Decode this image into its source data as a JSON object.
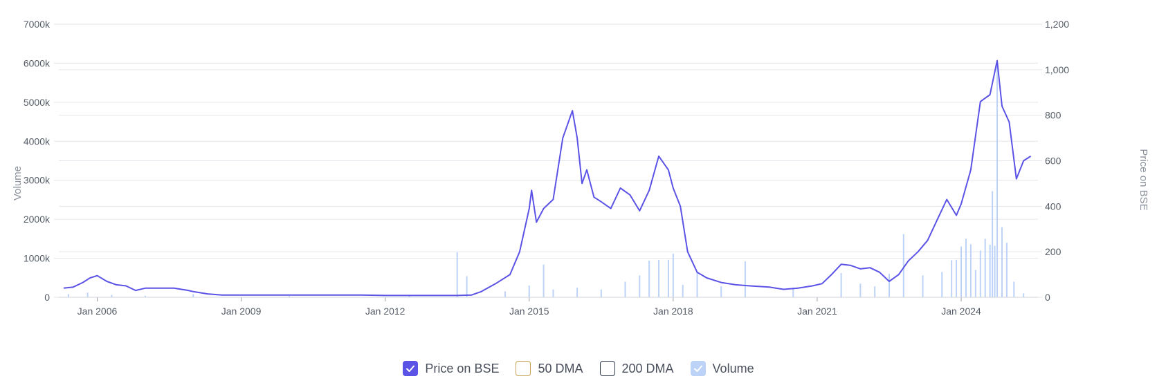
{
  "chart_data": {
    "type": "line",
    "xlabel": "",
    "y_left_label": "Volume",
    "y_right_label": "Price on BSE",
    "x_ticks": [
      "Jan 2006",
      "Jan 2009",
      "Jan 2012",
      "Jan 2015",
      "Jan 2018",
      "Jan 2021",
      "Jan 2024"
    ],
    "y_left_ticks": [
      "0",
      "1000k",
      "2000k",
      "3000k",
      "4000k",
      "5000k",
      "6000k",
      "7000k"
    ],
    "y_right_ticks": [
      "0",
      "200",
      "400",
      "600",
      "800",
      "1,000",
      "1,200"
    ],
    "x_range": [
      2005.2,
      2025.6
    ],
    "y_left_range": [
      0,
      7000000
    ],
    "y_right_range": [
      0,
      1200
    ],
    "grid": true,
    "legend_position": "bottom",
    "series": [
      {
        "name": "Price on BSE",
        "axis": "right",
        "color": "#5b52e6",
        "x": [
          2005.3,
          2005.5,
          2005.7,
          2005.85,
          2006.0,
          2006.2,
          2006.4,
          2006.6,
          2006.8,
          2007.0,
          2007.3,
          2007.6,
          2007.9,
          2008.0,
          2008.3,
          2008.6,
          2009.0,
          2009.5,
          2010.0,
          2010.5,
          2011.0,
          2011.5,
          2012.0,
          2012.5,
          2013.0,
          2013.5,
          2013.8,
          2014.0,
          2014.3,
          2014.6,
          2014.8,
          2015.0,
          2015.05,
          2015.15,
          2015.3,
          2015.5,
          2015.7,
          2015.9,
          2016.0,
          2016.1,
          2016.2,
          2016.35,
          2016.5,
          2016.7,
          2016.9,
          2017.1,
          2017.3,
          2017.5,
          2017.7,
          2017.9,
          2018.0,
          2018.15,
          2018.3,
          2018.5,
          2018.7,
          2019.0,
          2019.3,
          2019.6,
          2020.0,
          2020.3,
          2020.6,
          2020.9,
          2021.1,
          2021.3,
          2021.5,
          2021.7,
          2021.9,
          2022.1,
          2022.3,
          2022.5,
          2022.7,
          2022.9,
          2023.1,
          2023.3,
          2023.5,
          2023.7,
          2023.9,
          2024.0,
          2024.2,
          2024.4,
          2024.6,
          2024.75,
          2024.85,
          2025.0,
          2025.15,
          2025.3,
          2025.45
        ],
        "y": [
          40,
          45,
          65,
          85,
          95,
          70,
          55,
          50,
          30,
          40,
          40,
          40,
          30,
          25,
          15,
          10,
          10,
          10,
          10,
          10,
          10,
          10,
          8,
          8,
          8,
          8,
          10,
          25,
          60,
          100,
          200,
          390,
          470,
          330,
          390,
          430,
          700,
          820,
          700,
          500,
          560,
          440,
          420,
          390,
          480,
          450,
          380,
          470,
          620,
          560,
          480,
          400,
          200,
          110,
          85,
          65,
          55,
          50,
          45,
          35,
          40,
          50,
          60,
          100,
          145,
          140,
          125,
          130,
          110,
          70,
          100,
          160,
          200,
          250,
          340,
          430,
          360,
          410,
          560,
          860,
          890,
          1040,
          840,
          770,
          520,
          600,
          620
        ]
      },
      {
        "name": "50 DMA",
        "axis": "right",
        "color": "#c9a35a",
        "visible": false
      },
      {
        "name": "200 DMA",
        "axis": "right",
        "color": "#2e3a4a",
        "visible": false
      },
      {
        "name": "Volume",
        "axis": "left",
        "type": "bar",
        "color": "#bcd3f7",
        "x": [
          2005.4,
          2005.8,
          2006.3,
          2007.0,
          2008.0,
          2010.0,
          2012.5,
          2013.5,
          2013.7,
          2014.5,
          2015.0,
          2015.3,
          2015.5,
          2016.0,
          2016.5,
          2017.0,
          2017.3,
          2017.5,
          2017.7,
          2017.9,
          2018.0,
          2018.2,
          2018.5,
          2019.0,
          2019.5,
          2020.5,
          2021.5,
          2021.9,
          2022.2,
          2022.5,
          2022.8,
          2023.2,
          2023.6,
          2023.8,
          2023.9,
          2024.0,
          2024.1,
          2024.2,
          2024.3,
          2024.4,
          2024.5,
          2024.6,
          2024.65,
          2024.7,
          2024.75,
          2024.85,
          2024.95,
          2025.1,
          2025.3
        ],
        "y": [
          80000,
          120000,
          60000,
          40000,
          80000,
          30000,
          40000,
          1150000,
          540000,
          150000,
          300000,
          840000,
          200000,
          250000,
          200000,
          400000,
          560000,
          940000,
          960000,
          960000,
          1120000,
          320000,
          650000,
          280000,
          920000,
          250000,
          620000,
          350000,
          280000,
          600000,
          1620000,
          560000,
          650000,
          950000,
          960000,
          1300000,
          1500000,
          1360000,
          700000,
          1200000,
          1500000,
          1350000,
          2720000,
          1320000,
          6020000,
          1800000,
          1400000,
          400000,
          100000
        ]
      }
    ]
  },
  "legend": {
    "items": [
      {
        "label": "Price on BSE",
        "checked": true,
        "color": "#5b52e6"
      },
      {
        "label": "50 DMA",
        "checked": false,
        "color": "#c9a35a"
      },
      {
        "label": "200 DMA",
        "checked": false,
        "color": "#2e3a4a"
      },
      {
        "label": "Volume",
        "checked": true,
        "color": "#bcd3f7"
      }
    ]
  }
}
